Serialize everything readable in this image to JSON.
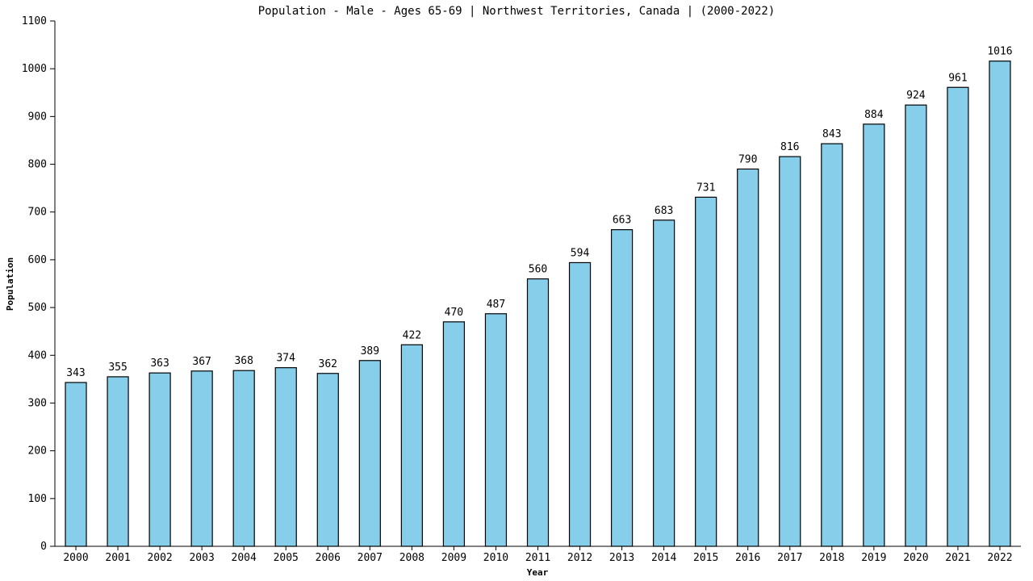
{
  "chart_data": {
    "type": "bar",
    "title": "Population - Male - Ages 65-69 | Northwest Territories, Canada |  (2000-2022)",
    "xlabel": "Year",
    "ylabel": "Population",
    "ylim": [
      0,
      1100
    ],
    "yticks": [
      0,
      100,
      200,
      300,
      400,
      500,
      600,
      700,
      800,
      900,
      1000,
      1100
    ],
    "grid": false,
    "legend": "none",
    "bar_color": "#87ceeb",
    "categories": [
      "2000",
      "2001",
      "2002",
      "2003",
      "2004",
      "2005",
      "2006",
      "2007",
      "2008",
      "2009",
      "2010",
      "2011",
      "2012",
      "2013",
      "2014",
      "2015",
      "2016",
      "2017",
      "2018",
      "2019",
      "2020",
      "2021",
      "2022"
    ],
    "values": [
      343,
      355,
      363,
      367,
      368,
      374,
      362,
      389,
      422,
      470,
      487,
      560,
      594,
      663,
      683,
      731,
      790,
      816,
      843,
      884,
      924,
      961,
      1016
    ]
  }
}
